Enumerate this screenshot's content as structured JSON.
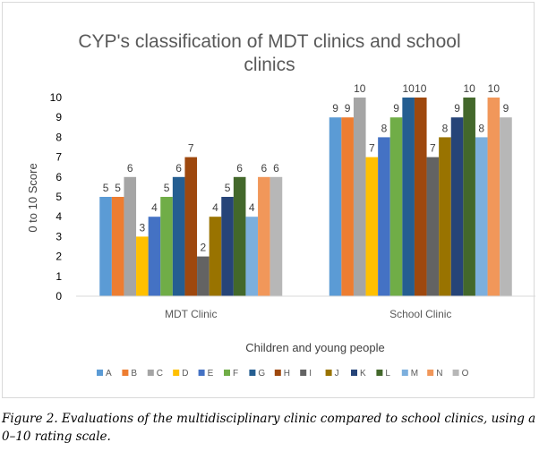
{
  "chart_data": {
    "type": "bar",
    "title": "CYP's classification of MDT clinics and school clinics",
    "title_lines": [
      "CYP's classification of MDT clinics and school",
      "clinics"
    ],
    "xlabel": "Children and young people",
    "ylabel": "0 to 10 Score",
    "ylim": [
      0,
      10
    ],
    "yticks": [
      "0",
      "1",
      "2",
      "3",
      "4",
      "5",
      "6",
      "7",
      "8",
      "9",
      "10"
    ],
    "grid": false,
    "legend_position": "bottom",
    "data_labels": true,
    "categories": [
      "MDT Clinic",
      "School Clinic"
    ],
    "series": [
      {
        "name": "A",
        "color": "#5B9BD5",
        "values": [
          5,
          9
        ]
      },
      {
        "name": "B",
        "color": "#ED7D31",
        "values": [
          5,
          9
        ]
      },
      {
        "name": "C",
        "color": "#A5A5A5",
        "values": [
          6,
          10
        ]
      },
      {
        "name": "D",
        "color": "#FFC000",
        "values": [
          3,
          7
        ]
      },
      {
        "name": "E",
        "color": "#4472C4",
        "values": [
          4,
          8
        ]
      },
      {
        "name": "F",
        "color": "#70AD47",
        "values": [
          5,
          9
        ]
      },
      {
        "name": "G",
        "color": "#255E91",
        "values": [
          6,
          10
        ]
      },
      {
        "name": "H",
        "color": "#9E480E",
        "values": [
          7,
          10
        ]
      },
      {
        "name": "I",
        "color": "#636363",
        "values": [
          2,
          7
        ]
      },
      {
        "name": "J",
        "color": "#997300",
        "values": [
          4,
          8
        ]
      },
      {
        "name": "K",
        "color": "#264478",
        "values": [
          5,
          9
        ]
      },
      {
        "name": "L",
        "color": "#43682B",
        "values": [
          6,
          10
        ]
      },
      {
        "name": "M",
        "color": "#7CAFDD",
        "values": [
          4,
          8
        ]
      },
      {
        "name": "N",
        "color": "#F1975A",
        "values": [
          6,
          10
        ]
      },
      {
        "name": "O",
        "color": "#B7B7B7",
        "values": [
          6,
          9
        ]
      }
    ]
  },
  "caption": "Figure 2. Evaluations of the multidisciplinary clinic compared to school clinics, using a 0–10 rating scale."
}
